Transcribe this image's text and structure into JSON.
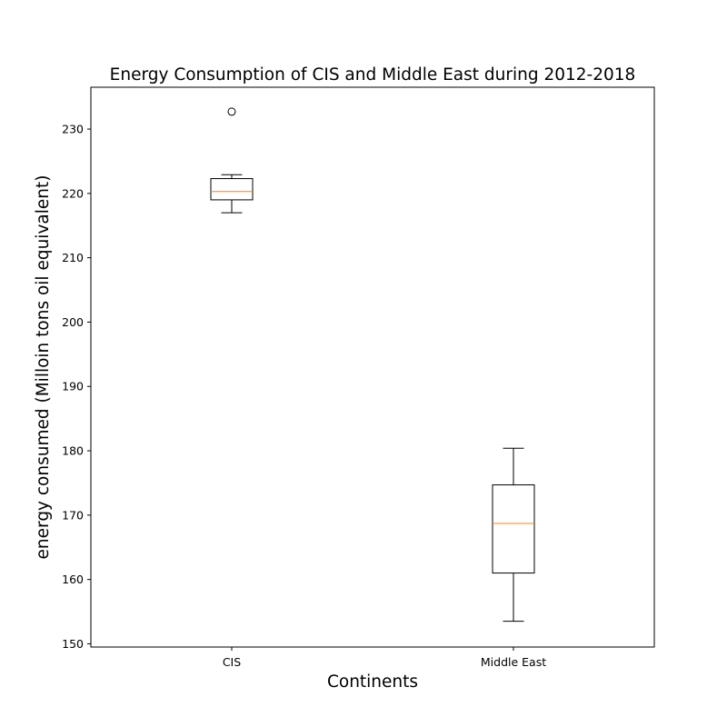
{
  "chart_data": {
    "type": "box",
    "title": "Energy Consumption of CIS and Middle East during 2012-2018",
    "xlabel": "Continents",
    "ylabel": "energy consumed (Milloin tons oil equivalent)",
    "ylim": [
      149.5,
      236.5
    ],
    "yticks": [
      150,
      160,
      170,
      180,
      190,
      200,
      210,
      220,
      230
    ],
    "grid": false,
    "categories": [
      "CIS",
      "Middle East"
    ],
    "boxes": [
      {
        "category": "CIS",
        "whisker_low": 217.0,
        "q1": 219.0,
        "median": 220.3,
        "q3": 222.3,
        "whisker_high": 222.9,
        "outliers": [
          232.7
        ]
      },
      {
        "category": "Middle East",
        "whisker_low": 153.5,
        "q1": 161.0,
        "median": 168.7,
        "q3": 174.7,
        "whisker_high": 180.4,
        "outliers": []
      }
    ],
    "colors": {
      "box": "#000000",
      "median": "#ff7f0e",
      "axes": "#000000"
    }
  }
}
